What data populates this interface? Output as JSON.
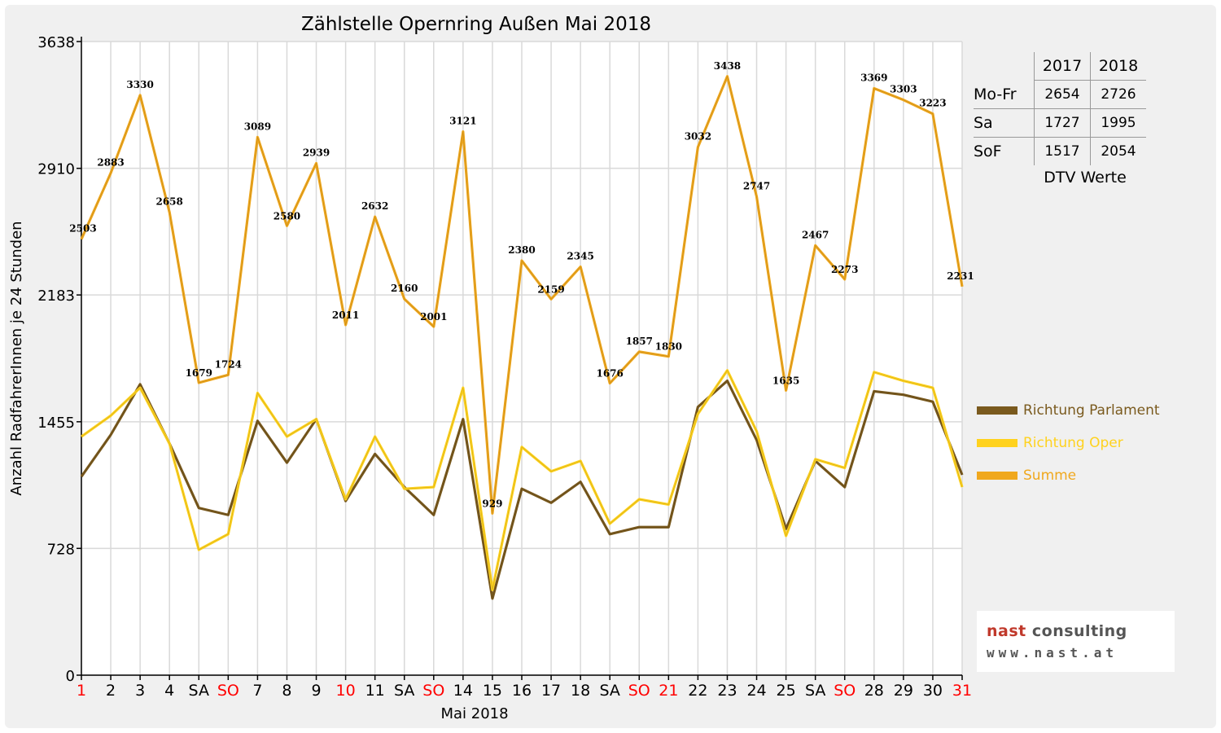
{
  "chart_data": {
    "type": "line",
    "title": "Zählstelle Opernring Außen Mai 2018",
    "xlabel": "Mai 2018",
    "ylabel": "Anzahl RadfahrerInnen je 24 Stunden",
    "ylim": [
      0,
      3638
    ],
    "yticks": [
      "0",
      "728",
      "1455",
      "2183",
      "2910",
      "3638"
    ],
    "categories": [
      "1",
      "2",
      "3",
      "4",
      "SA",
      "SO",
      "7",
      "8",
      "9",
      "10",
      "11",
      "SA",
      "SO",
      "14",
      "15",
      "16",
      "17",
      "18",
      "SA",
      "SO",
      "21",
      "22",
      "23",
      "24",
      "25",
      "SA",
      "SO",
      "28",
      "29",
      "30",
      "31"
    ],
    "red_categories": [
      0,
      5,
      9,
      12,
      19,
      20,
      26,
      30
    ],
    "grid": true,
    "legend_position": "right",
    "series": [
      {
        "name": "Richtung Parlament",
        "color": "#7a5a1e",
        "values": [
          1140,
          1380,
          1670,
          1330,
          960,
          920,
          1460,
          1220,
          1470,
          1000,
          1270,
          1080,
          920,
          1470,
          440,
          1070,
          990,
          1110,
          810,
          850,
          850,
          1540,
          1690,
          1350,
          840,
          1230,
          1080,
          1630,
          1610,
          1570,
          1150
        ]
      },
      {
        "name": "Richtung Oper",
        "color": "#ffd21e",
        "values": [
          1370,
          1490,
          1650,
          1330,
          720,
          810,
          1620,
          1370,
          1470,
          1010,
          1370,
          1070,
          1080,
          1650,
          490,
          1310,
          1170,
          1230,
          870,
          1010,
          980,
          1500,
          1750,
          1400,
          800,
          1240,
          1190,
          1740,
          1690,
          1650,
          1080
        ]
      },
      {
        "name": "Summe",
        "color": "#f0a81e",
        "values": [
          2503,
          2883,
          3330,
          2658,
          1679,
          1724,
          3089,
          2580,
          2939,
          2011,
          2632,
          2160,
          2001,
          3121,
          929,
          2380,
          2159,
          2345,
          1676,
          1857,
          1830,
          3032,
          3438,
          2747,
          1635,
          2467,
          2273,
          3369,
          3303,
          3223,
          2231
        ]
      }
    ],
    "data_labels": [
      "2503",
      "2883",
      "3330",
      "2658",
      "1679",
      "1724",
      "3089",
      "2580",
      "2939",
      "2011",
      "2632",
      "2160",
      "2001",
      "3121",
      "929",
      "2380",
      "2159",
      "2345",
      "1676",
      "1857",
      "1830",
      "3032",
      "3438",
      "2747",
      "1635",
      "2467",
      "2273",
      "3369",
      "3303",
      "3223",
      "2231"
    ]
  },
  "dtv_table": {
    "header": [
      "",
      "2017",
      "2018"
    ],
    "rows": [
      [
        "Mo-Fr",
        "2654",
        "2726"
      ],
      [
        "Sa",
        "1727",
        "1995"
      ],
      [
        "SoF",
        "1517",
        "2054"
      ]
    ],
    "caption": "DTV Werte"
  },
  "logo": {
    "line1_a": "nast",
    "line1_b": "consulting",
    "line2": "www.nast.at"
  },
  "colors": {
    "background": "#f0f0f0",
    "plot_background": "#ffffff",
    "grid": "#d9d9d9",
    "weekend_red": "#ff0000",
    "logo_red": "#c0392b"
  }
}
